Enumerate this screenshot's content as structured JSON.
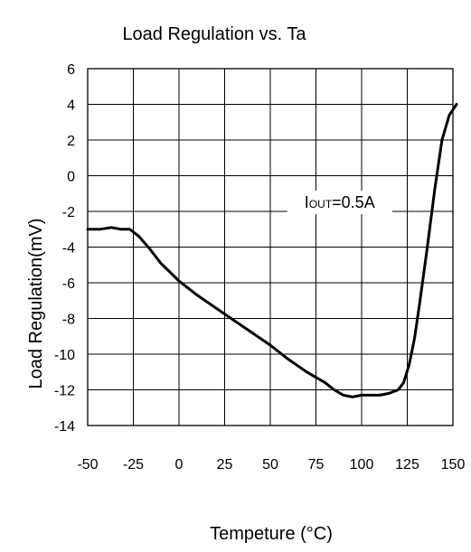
{
  "chart_data": {
    "type": "line",
    "title": "Load Regulation vs. Ta",
    "xlabel": "Tempeture (°C)",
    "ylabel": "Load Regulation(mV)",
    "xlim": [
      -50,
      150
    ],
    "ylim": [
      -14,
      6
    ],
    "x_ticks": [
      "-50",
      "-25",
      "0",
      "25",
      "50",
      "75",
      "100",
      "125",
      "150"
    ],
    "y_ticks": [
      "6",
      "4",
      "2",
      "0",
      "-2",
      "-4",
      "-6",
      "-8",
      "-10",
      "-12",
      "-14"
    ],
    "grid": true,
    "annotation": {
      "main": "I",
      "subscript": "OUT",
      "value": "=0.5A",
      "x": 88,
      "y": -1.8
    },
    "series": [
      {
        "color": "#000000",
        "x": [
          -50,
          -43,
          -37,
          -32,
          -27,
          -22,
          -16,
          -10,
          -5,
          0,
          5,
          10,
          20,
          30,
          40,
          50,
          60,
          70,
          80,
          85,
          90,
          95,
          100,
          105,
          110,
          115,
          120,
          123,
          126,
          129,
          132,
          136,
          140,
          144,
          148,
          152
        ],
        "y": [
          -3.0,
          -3.0,
          -2.9,
          -3.0,
          -3.0,
          -3.4,
          -4.1,
          -4.9,
          -5.4,
          -5.9,
          -6.3,
          -6.7,
          -7.4,
          -8.1,
          -8.8,
          -9.5,
          -10.3,
          -11.0,
          -11.6,
          -12.0,
          -12.3,
          -12.4,
          -12.3,
          -12.3,
          -12.3,
          -12.2,
          -12.0,
          -11.6,
          -10.6,
          -9.1,
          -7.0,
          -4.0,
          -0.8,
          2.0,
          3.4,
          4.0
        ]
      }
    ]
  }
}
